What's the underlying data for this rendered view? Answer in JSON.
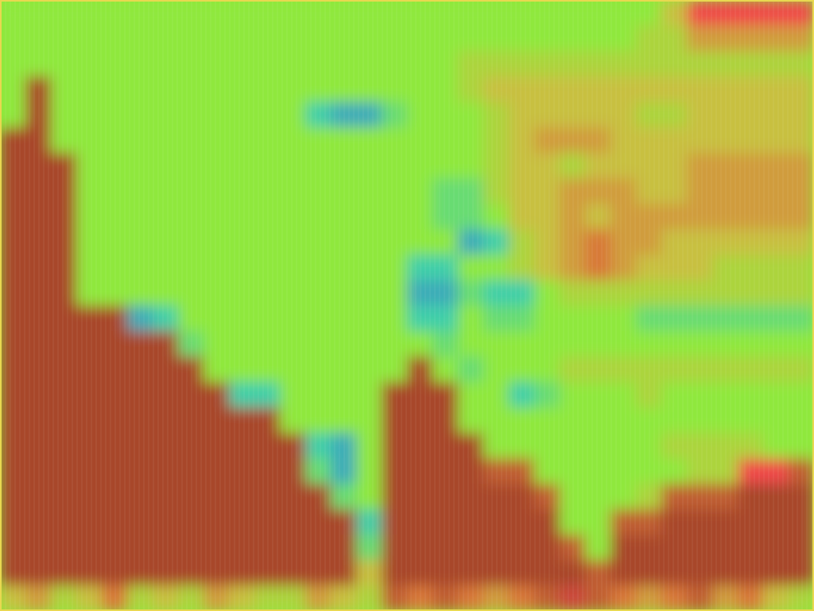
{
  "chart_data": {
    "type": "heatmap",
    "tick_labels": false,
    "xlim": [
      0,
      32
    ],
    "ylim": [
      24,
      0
    ],
    "colorscale": {
      "range": [
        0,
        12
      ],
      "colors": [
        "#3a88c8",
        "#3fcfa8",
        "#8fe83c",
        "#c8c040",
        "#d87838",
        "#a8462c",
        "#f04848"
      ]
    },
    "z": [
      [
        4,
        4,
        4,
        4,
        4,
        4,
        4,
        4,
        4,
        4,
        4,
        4,
        4,
        4,
        4,
        4,
        4,
        4,
        4,
        4,
        4,
        4,
        4,
        4,
        4,
        4,
        6,
        12,
        12,
        12,
        12,
        12
      ],
      [
        4,
        4,
        4,
        4,
        4,
        4,
        4,
        4,
        4,
        4,
        4,
        4,
        4,
        4,
        4,
        4,
        4,
        4,
        4,
        4,
        4,
        4,
        4,
        4,
        4,
        5,
        5,
        7,
        7,
        7,
        7,
        7
      ],
      [
        4,
        4,
        4,
        4,
        4,
        4,
        4,
        4,
        4,
        4,
        4,
        4,
        4,
        4,
        4,
        4,
        4,
        4,
        5,
        5,
        5,
        5,
        5,
        5,
        5,
        5,
        5,
        5,
        5,
        5,
        5,
        5
      ],
      [
        4,
        10,
        4,
        4,
        4,
        4,
        4,
        4,
        4,
        4,
        4,
        4,
        4,
        4,
        4,
        4,
        4,
        4,
        5,
        6,
        6,
        6,
        6,
        6,
        6,
        6,
        6,
        6,
        6,
        6,
        6,
        6
      ],
      [
        4,
        10,
        4,
        4,
        4,
        4,
        4,
        4,
        4,
        4,
        4,
        4,
        2,
        1,
        1,
        3,
        4,
        4,
        4,
        5,
        6,
        6,
        6,
        6,
        6,
        5,
        5,
        6,
        6,
        6,
        6,
        6
      ],
      [
        10,
        10,
        4,
        4,
        4,
        4,
        4,
        4,
        4,
        4,
        4,
        4,
        4,
        4,
        4,
        4,
        4,
        4,
        4,
        5,
        6,
        7,
        7,
        7,
        6,
        6,
        6,
        6,
        6,
        6,
        6,
        6
      ],
      [
        10,
        10,
        10,
        4,
        4,
        4,
        4,
        4,
        4,
        4,
        4,
        4,
        4,
        4,
        4,
        4,
        4,
        4,
        4,
        5,
        6,
        6,
        5,
        6,
        6,
        6,
        6,
        7,
        7,
        7,
        7,
        7
      ],
      [
        10,
        10,
        10,
        4,
        4,
        4,
        4,
        4,
        4,
        4,
        4,
        4,
        4,
        4,
        4,
        4,
        4,
        3,
        3,
        5,
        6,
        6,
        7,
        7,
        7,
        6,
        6,
        7,
        7,
        7,
        7,
        7
      ],
      [
        10,
        10,
        10,
        4,
        4,
        4,
        4,
        4,
        4,
        4,
        4,
        4,
        4,
        4,
        4,
        4,
        4,
        3,
        3,
        4,
        6,
        6,
        7,
        6,
        7,
        7,
        7,
        7,
        7,
        7,
        7,
        7
      ],
      [
        10,
        10,
        10,
        4,
        4,
        4,
        4,
        4,
        4,
        4,
        4,
        4,
        4,
        4,
        4,
        4,
        4,
        4,
        1,
        2,
        5,
        6,
        7,
        8,
        7,
        7,
        6,
        6,
        6,
        6,
        6,
        6
      ],
      [
        10,
        10,
        10,
        4,
        4,
        4,
        4,
        4,
        4,
        4,
        4,
        4,
        4,
        4,
        4,
        4,
        2,
        2,
        4,
        4,
        5,
        6,
        7,
        8,
        7,
        6,
        6,
        6,
        5,
        5,
        5,
        5
      ],
      [
        10,
        10,
        10,
        4,
        4,
        4,
        4,
        4,
        4,
        4,
        4,
        4,
        4,
        4,
        4,
        4,
        1,
        1,
        3,
        2,
        2,
        4,
        5,
        5,
        5,
        5,
        5,
        5,
        5,
        5,
        5,
        5
      ],
      [
        10,
        10,
        10,
        10,
        10,
        1,
        2,
        4,
        4,
        4,
        4,
        4,
        4,
        4,
        4,
        4,
        2,
        2,
        4,
        3,
        3,
        4,
        4,
        4,
        4,
        3,
        3,
        3,
        3,
        3,
        3,
        3
      ],
      [
        10,
        10,
        10,
        10,
        10,
        10,
        10,
        3,
        4,
        4,
        4,
        4,
        4,
        4,
        4,
        4,
        4,
        3,
        4,
        4,
        4,
        4,
        4,
        4,
        4,
        4,
        4,
        4,
        4,
        4,
        4,
        4
      ],
      [
        10,
        10,
        10,
        10,
        10,
        10,
        10,
        10,
        4,
        4,
        4,
        4,
        4,
        4,
        4,
        4,
        10,
        4,
        3,
        4,
        4,
        4,
        5,
        5,
        5,
        5,
        5,
        5,
        5,
        5,
        5,
        5
      ],
      [
        10,
        10,
        10,
        10,
        10,
        10,
        10,
        10,
        10,
        2,
        2,
        4,
        4,
        4,
        4,
        10,
        10,
        10,
        4,
        4,
        2,
        3,
        4,
        4,
        4,
        5,
        4,
        4,
        4,
        4,
        4,
        4
      ],
      [
        10,
        10,
        10,
        10,
        10,
        10,
        10,
        10,
        10,
        10,
        10,
        4,
        4,
        4,
        4,
        10,
        10,
        10,
        4,
        4,
        4,
        4,
        4,
        4,
        4,
        4,
        4,
        4,
        4,
        4,
        4,
        4
      ],
      [
        10,
        10,
        10,
        10,
        10,
        10,
        10,
        10,
        10,
        10,
        10,
        10,
        2,
        1,
        4,
        10,
        10,
        10,
        10,
        4,
        4,
        4,
        4,
        4,
        4,
        4,
        5,
        5,
        5,
        5,
        4,
        4
      ],
      [
        10,
        10,
        10,
        10,
        10,
        10,
        10,
        10,
        10,
        10,
        10,
        10,
        3,
        1,
        4,
        10,
        10,
        10,
        10,
        9,
        9,
        4,
        4,
        4,
        4,
        4,
        4,
        5,
        5,
        12,
        12,
        9
      ],
      [
        10,
        10,
        10,
        10,
        10,
        10,
        10,
        10,
        10,
        10,
        10,
        10,
        10,
        3,
        4,
        10,
        10,
        10,
        10,
        10,
        10,
        9,
        4,
        4,
        4,
        5,
        9,
        9,
        9,
        10,
        10,
        10
      ],
      [
        10,
        10,
        10,
        10,
        10,
        10,
        10,
        10,
        10,
        10,
        10,
        10,
        10,
        10,
        2,
        10,
        10,
        10,
        10,
        10,
        10,
        10,
        4,
        4,
        9,
        9,
        10,
        10,
        10,
        10,
        10,
        10
      ],
      [
        10,
        10,
        10,
        10,
        10,
        10,
        10,
        10,
        10,
        10,
        10,
        10,
        10,
        10,
        3,
        10,
        10,
        10,
        10,
        10,
        10,
        10,
        9,
        4,
        10,
        10,
        10,
        10,
        10,
        10,
        10,
        10
      ],
      [
        10,
        10,
        10,
        10,
        10,
        10,
        10,
        10,
        10,
        10,
        10,
        10,
        10,
        10,
        6,
        10,
        10,
        10,
        10,
        10,
        10,
        10,
        10,
        9,
        10,
        10,
        10,
        10,
        10,
        10,
        10,
        10
      ],
      [
        6,
        7,
        5,
        6,
        8,
        5,
        6,
        5,
        7,
        6,
        5,
        5,
        7,
        6,
        5,
        9,
        8,
        9,
        8,
        7,
        8,
        9,
        11,
        9,
        8,
        7,
        8,
        9,
        7,
        8,
        6,
        5
      ]
    ]
  }
}
